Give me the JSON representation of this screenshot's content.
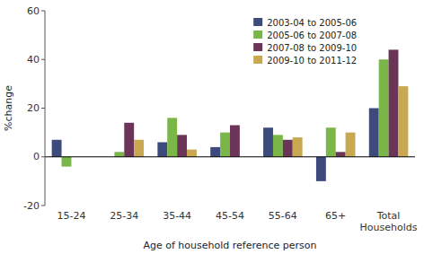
{
  "chart_data": {
    "type": "bar",
    "categories": [
      "15-24",
      "25-34",
      "35-44",
      "45-54",
      "55-64",
      "65+",
      "Total\nHouseholds"
    ],
    "series": [
      {
        "name": "2003-04 to 2005-06",
        "color": "#3d4b7c",
        "values": [
          7,
          0,
          6,
          4,
          12,
          -10,
          20
        ]
      },
      {
        "name": "2005-06 to 2007-08",
        "color": "#7ab648",
        "values": [
          -4,
          2,
          16,
          10,
          9,
          12,
          40
        ]
      },
      {
        "name": "2007-08 to 2009-10",
        "color": "#6b3558",
        "values": [
          0,
          14,
          9,
          13,
          7,
          2,
          44
        ]
      },
      {
        "name": "2009-10 to 2011-12",
        "color": "#c8a951",
        "values": [
          0,
          7,
          3,
          0,
          8,
          10,
          29
        ]
      }
    ],
    "ylabel": "%change",
    "xlabel": "Age of household reference person",
    "ylim": [
      -20,
      60
    ],
    "yticks": [
      -20,
      0,
      20,
      40,
      60
    ],
    "grid": false,
    "legend": "upper right"
  }
}
